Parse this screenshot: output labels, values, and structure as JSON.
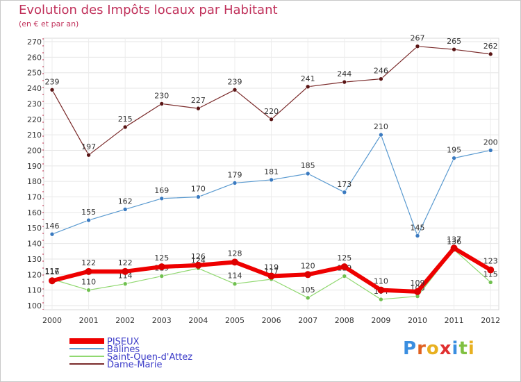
{
  "chart_data": {
    "type": "line",
    "title": "Evolution des Impôts locaux par Habitant",
    "subtitle": "(en € et par an)",
    "xlabel": "",
    "ylabel": "",
    "ylim": [
      100,
      270
    ],
    "yticks": [
      100,
      110,
      120,
      130,
      140,
      150,
      160,
      170,
      180,
      190,
      200,
      210,
      220,
      230,
      240,
      250,
      260,
      270
    ],
    "categories": [
      "2000",
      "2001",
      "2002",
      "2003",
      "2004",
      "2005",
      "2006",
      "2007",
      "2008",
      "2009",
      "2010",
      "2011",
      "2012"
    ],
    "series": [
      {
        "name": "Dame-Marie",
        "color": "#7a2a2a",
        "marker": "#5a1515",
        "values": [
          239,
          197,
          215,
          230,
          227,
          239,
          220,
          241,
          244,
          246,
          267,
          265,
          262
        ]
      },
      {
        "name": "Bâlines",
        "color": "#5a9ad0",
        "marker": "#3a7ac0",
        "values": [
          146,
          155,
          162,
          169,
          170,
          179,
          181,
          185,
          173,
          210,
          145,
          195,
          200
        ]
      },
      {
        "name": "Saint-Ouen-d'Attez",
        "color": "#90d870",
        "marker": "#70c050",
        "values": [
          117,
          110,
          114,
          119,
          124,
          114,
          117,
          105,
          119,
          104,
          106,
          136,
          115
        ]
      },
      {
        "name": "PISEUX",
        "color": "#ee0000",
        "marker": "#dd0000",
        "values": [
          116,
          122,
          122,
          125,
          126,
          128,
          119,
          120,
          125,
          110,
          109,
          137,
          123
        ]
      }
    ],
    "legend": [
      "PISEUX",
      "Bâlines",
      "Saint-Ouen-d'Attez",
      "Dame-Marie"
    ],
    "legend_position": "bottom-left",
    "grid": true
  },
  "logo": {
    "text": "Proxiti",
    "letters": [
      "P",
      "r",
      "o",
      "x",
      "i",
      "t",
      "i"
    ],
    "colors": [
      "#3a8ee0",
      "#e06020",
      "#e8b020",
      "#e03030",
      "#3a8ee0",
      "#80c040",
      "#e8b020"
    ]
  }
}
